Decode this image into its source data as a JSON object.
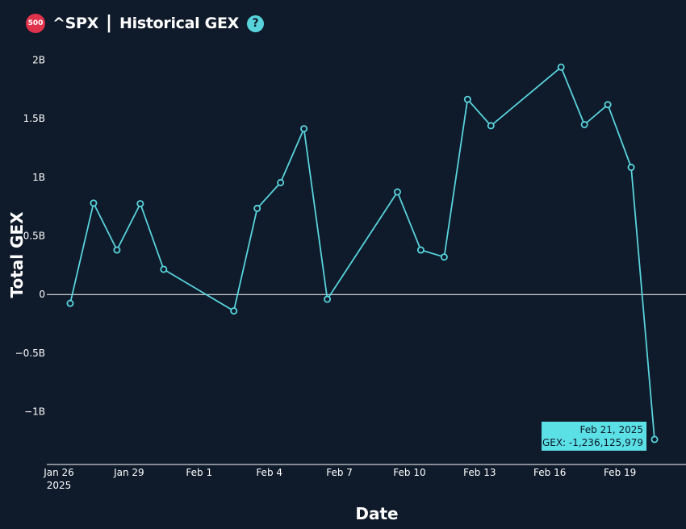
{
  "header": {
    "badge": "500",
    "ticker": "^SPX",
    "separator": "|",
    "title": "Historical GEX",
    "help_icon": "question-circle-icon",
    "help_glyph": "?"
  },
  "colors": {
    "background": "#0f1a2a",
    "line": "#58d3dc",
    "tooltip_bg": "#5be0e6",
    "badge": "#e0334b"
  },
  "chart_data": {
    "type": "line",
    "title": "Historical GEX",
    "xlabel": "Date",
    "ylabel": "Total GEX",
    "x_tick_labels": [
      {
        "date": "2025-01-26",
        "lines": [
          "Jan 26",
          "2025"
        ]
      },
      {
        "date": "2025-01-29",
        "lines": [
          "Jan 29"
        ]
      },
      {
        "date": "2025-02-01",
        "lines": [
          "Feb 1"
        ]
      },
      {
        "date": "2025-02-04",
        "lines": [
          "Feb 4"
        ]
      },
      {
        "date": "2025-02-07",
        "lines": [
          "Feb 7"
        ]
      },
      {
        "date": "2025-02-10",
        "lines": [
          "Feb 10"
        ]
      },
      {
        "date": "2025-02-13",
        "lines": [
          "Feb 13"
        ]
      },
      {
        "date": "2025-02-16",
        "lines": [
          "Feb 16"
        ]
      },
      {
        "date": "2025-02-19",
        "lines": [
          "Feb 19"
        ]
      }
    ],
    "y_ticks": [
      {
        "value": 2000000000,
        "label": "2B"
      },
      {
        "value": 1500000000,
        "label": "1.5B"
      },
      {
        "value": 1000000000,
        "label": "1B"
      },
      {
        "value": 500000000,
        "label": "0.5B"
      },
      {
        "value": 0,
        "label": "0"
      },
      {
        "value": -500000000,
        "label": "−0.5B"
      },
      {
        "value": -1000000000,
        "label": "−1B"
      }
    ],
    "xlim": [
      "2025-01-26",
      "2025-02-22"
    ],
    "ylim": [
      -1450000000,
      2100000000
    ],
    "zero_line": true,
    "grid": false,
    "series": [
      {
        "points": [
          {
            "x": "2025-01-27",
            "y": -75000000
          },
          {
            "x": "2025-01-28",
            "y": 780000000
          },
          {
            "x": "2025-01-29",
            "y": 380000000
          },
          {
            "x": "2025-01-30",
            "y": 775000000
          },
          {
            "x": "2025-01-31",
            "y": 215000000
          },
          {
            "x": "2025-02-03",
            "y": -140000000
          },
          {
            "x": "2025-02-04",
            "y": 735000000
          },
          {
            "x": "2025-02-05",
            "y": 955000000
          },
          {
            "x": "2025-02-06",
            "y": 1415000000
          },
          {
            "x": "2025-02-07",
            "y": -40000000
          },
          {
            "x": "2025-02-10",
            "y": 875000000
          },
          {
            "x": "2025-02-11",
            "y": 380000000
          },
          {
            "x": "2025-02-12",
            "y": 320000000
          },
          {
            "x": "2025-02-13",
            "y": 1665000000
          },
          {
            "x": "2025-02-14",
            "y": 1440000000
          },
          {
            "x": "2025-02-17",
            "y": 1940000000
          },
          {
            "x": "2025-02-18",
            "y": 1450000000
          },
          {
            "x": "2025-02-19",
            "y": 1620000000
          },
          {
            "x": "2025-02-20",
            "y": 1085000000
          },
          {
            "x": "2025-02-21",
            "y": -1236125979
          }
        ]
      }
    ],
    "tooltip": {
      "point_index": 19,
      "date_text": "Feb 21, 2025",
      "value_text": "GEX: -1,236,125,979"
    }
  }
}
